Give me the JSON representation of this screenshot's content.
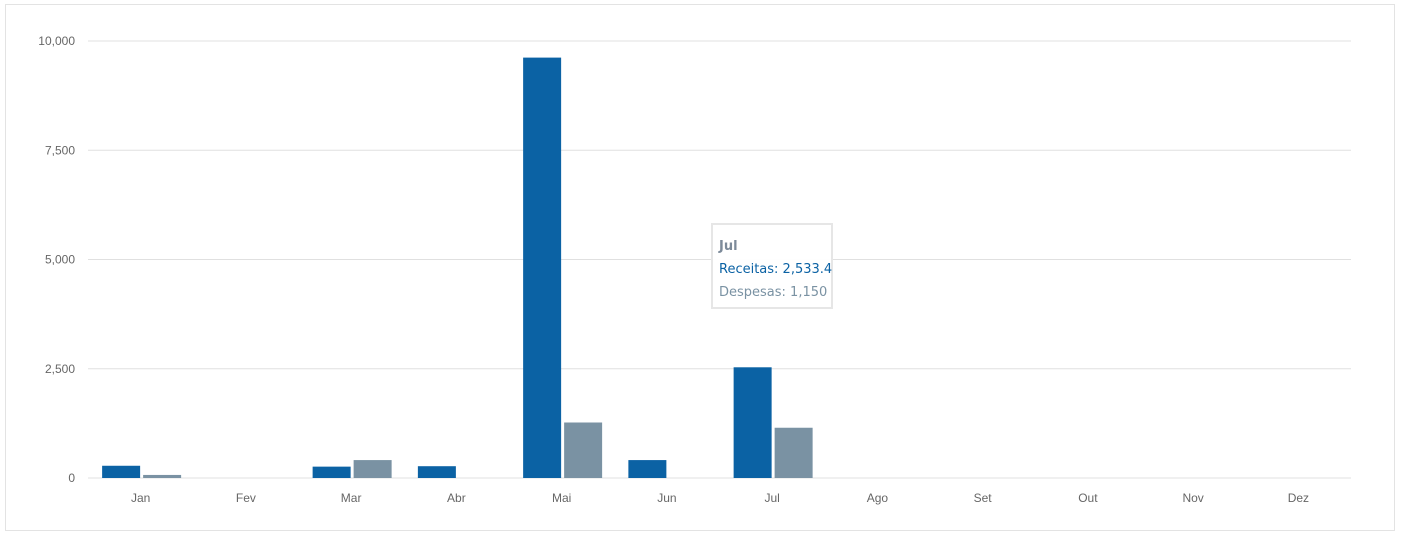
{
  "colors": {
    "receitas": "#0b62a4",
    "despesas": "#7a92a3",
    "grid": "#e0e0e0",
    "axis_text": "#666666"
  },
  "chart_data": {
    "type": "bar",
    "categories": [
      "Jan",
      "Fev",
      "Mar",
      "Abr",
      "Mai",
      "Jun",
      "Jul",
      "Ago",
      "Set",
      "Out",
      "Nov",
      "Dez"
    ],
    "series": [
      {
        "name": "Receitas",
        "values": [
          280,
          0,
          260,
          270,
          9620,
          410,
          2533.4,
          0,
          0,
          0,
          0,
          0
        ]
      },
      {
        "name": "Despesas",
        "values": [
          70,
          0,
          410,
          0,
          1270,
          0,
          1150,
          0,
          0,
          0,
          0,
          0
        ]
      }
    ],
    "ylim": [
      0,
      10000
    ],
    "yticks": [
      0,
      2500,
      5000,
      7500,
      10000
    ],
    "ytick_labels": [
      "0",
      "2,500",
      "5,000",
      "7,500",
      "10,000"
    ],
    "grid": true
  },
  "tooltip": {
    "title": "Jul",
    "receitas_text": "Receitas: 2,533.4",
    "despesas_text": "Despesas: 1,150"
  }
}
